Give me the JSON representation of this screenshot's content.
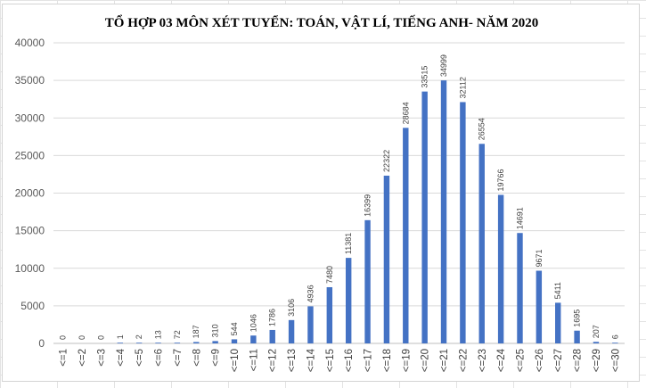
{
  "chart_data": {
    "type": "bar",
    "title": "TỔ HỢP 03 MÔN XÉT TUYỂN: TOÁN, VẬT LÍ, TIẾNG ANH- NĂM 2020",
    "xlabel": "",
    "ylabel": "",
    "ylim": [
      0,
      40000
    ],
    "yticks": [
      0,
      5000,
      10000,
      15000,
      20000,
      25000,
      30000,
      35000,
      40000
    ],
    "grid": true,
    "legend": "none",
    "bar_color": "#4472C4",
    "categories": [
      "<=1",
      "<=2",
      "<=3",
      "<=4",
      "<=5",
      "<=6",
      "<=7",
      "<=8",
      "<=9",
      "<=10",
      "<=11",
      "<=12",
      "<=13",
      "<=14",
      "<=15",
      "<=16",
      "<=17",
      "<=18",
      "<=19",
      "<=20",
      "<=21",
      "<=22",
      "<=23",
      "<=24",
      "<=25",
      "<=26",
      "<=27",
      "<=28",
      "<=29",
      "<=30"
    ],
    "values": [
      0,
      0,
      0,
      1,
      2,
      13,
      72,
      187,
      310,
      544,
      1046,
      1786,
      3106,
      4936,
      7480,
      11381,
      16399,
      22322,
      28684,
      33515,
      34999,
      32112,
      26554,
      19766,
      14691,
      9671,
      5411,
      1695,
      207,
      6
    ]
  }
}
